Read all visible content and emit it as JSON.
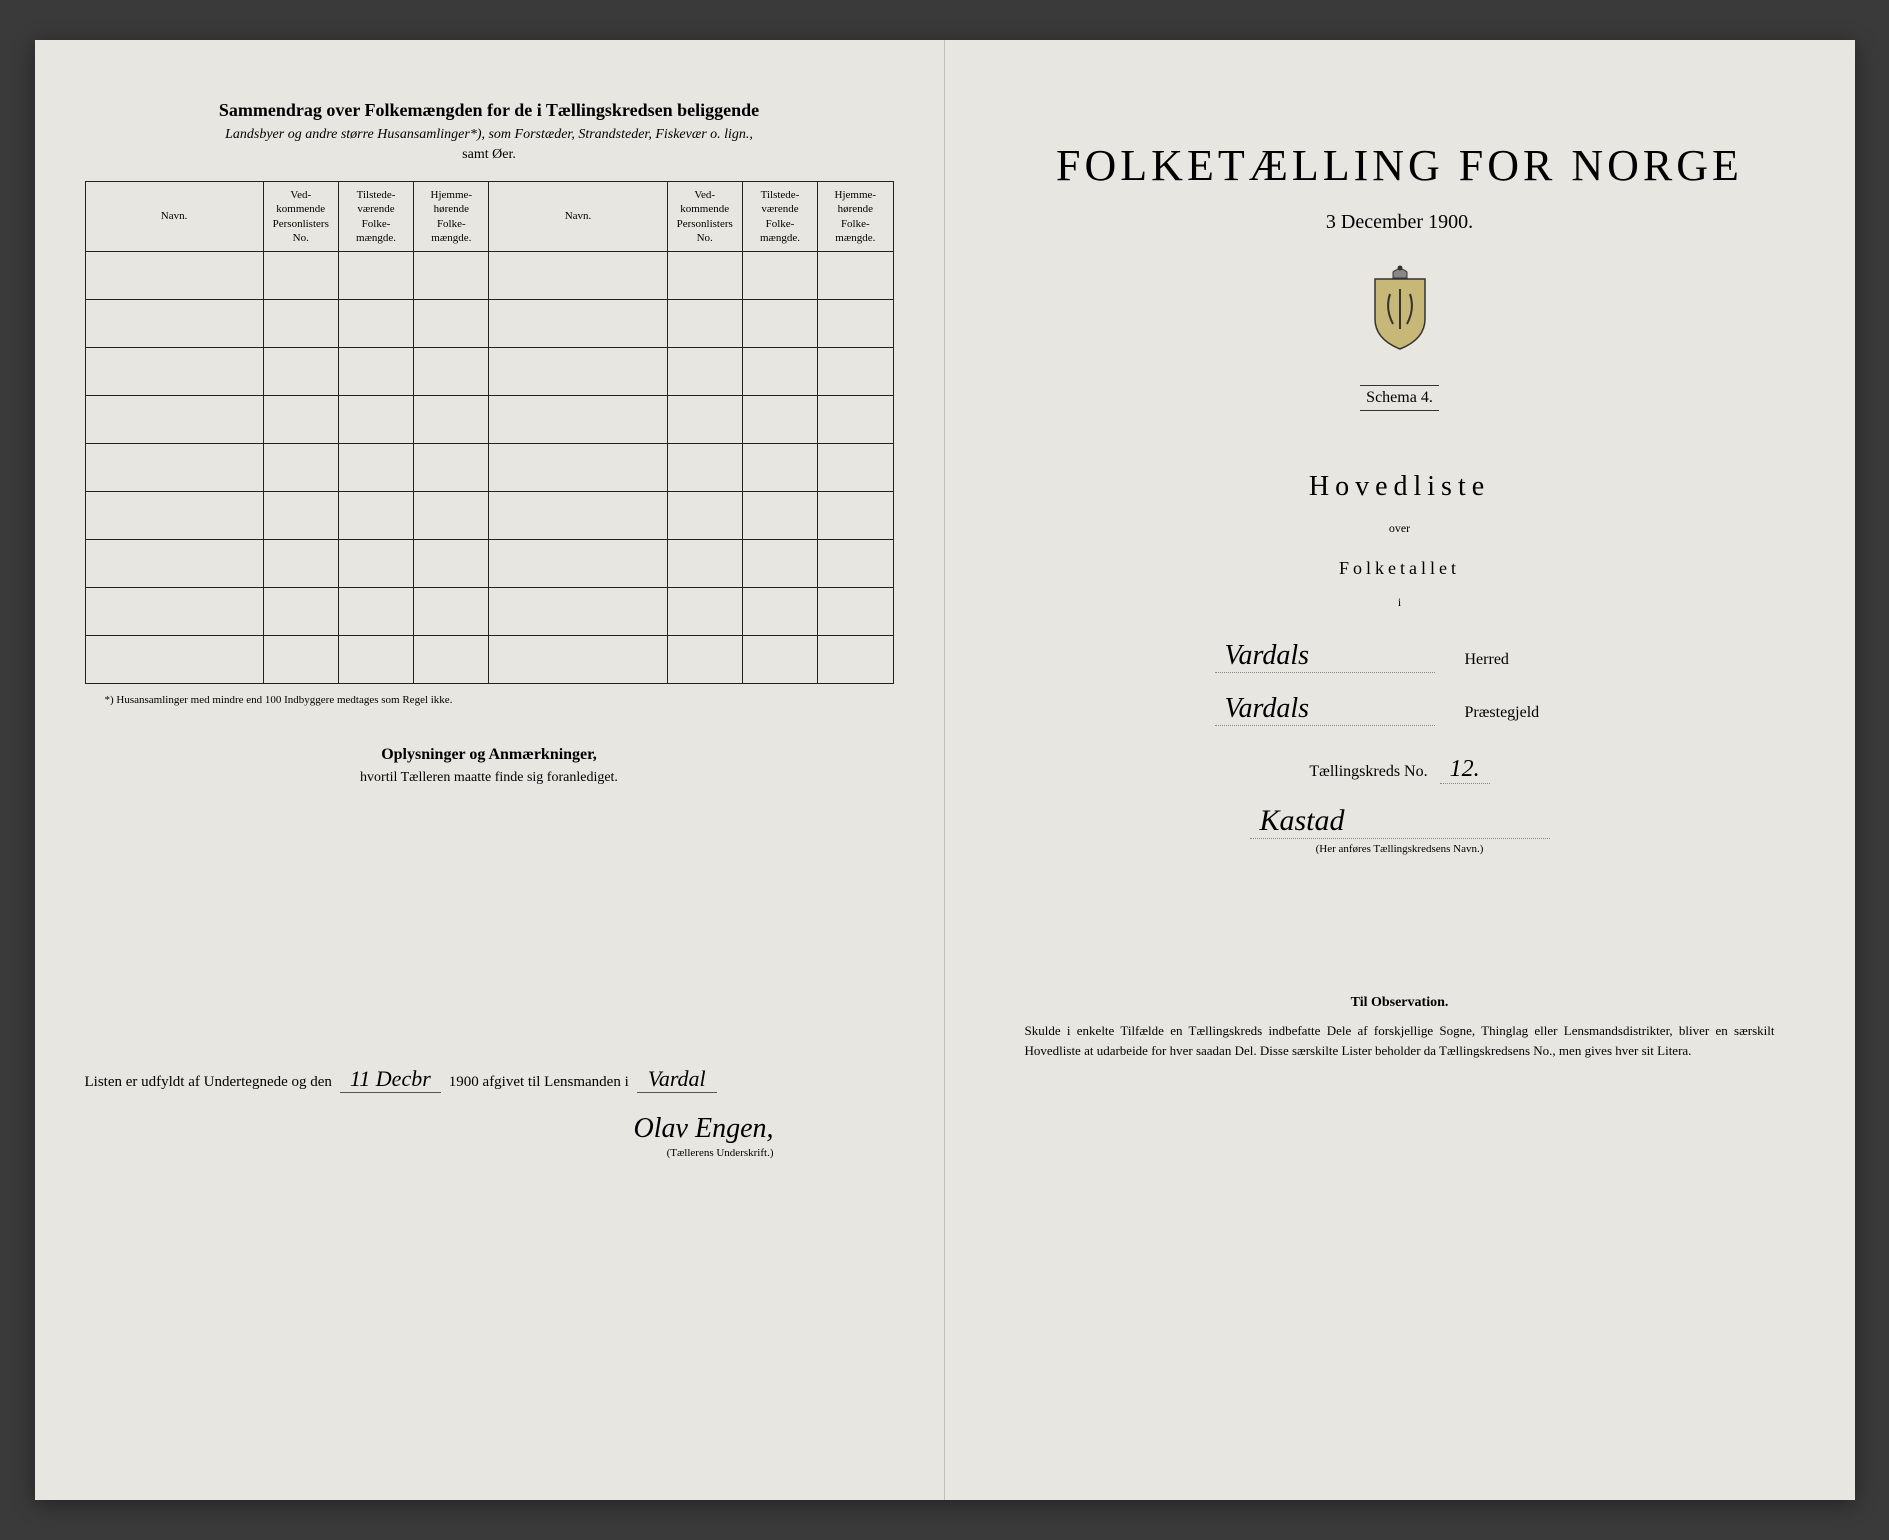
{
  "left": {
    "title": "Sammendrag over Folkemængden for de i Tællingskredsen beliggende",
    "subtitle": "Landsbyer og andre større Husansamlinger*), som Forstæder, Strandsteder, Fiskevær o. lign.,",
    "subtitle2": "samt Øer.",
    "table": {
      "headers": [
        "Navn.",
        "Ved-kommende Personlisters No.",
        "Tilstede-værende Folke-mængde.",
        "Hjemme-hørende Folke-mængde.",
        "Navn.",
        "Ved-kommende Personlisters No.",
        "Tilstede-værende Folke-mængde.",
        "Hjemme-hørende Folke-mængde."
      ],
      "row_count": 9
    },
    "footnote": "*) Husansamlinger med mindre end 100 Indbyggere medtages som Regel ikke.",
    "remarks_title": "Oplysninger og Anmærkninger,",
    "remarks_sub": "hvortil Tælleren maatte finde sig foranlediget.",
    "sig_line_1": "Listen er udfyldt af Undertegnede og den",
    "sig_date": "11 Decbr",
    "sig_year": "1900 afgivet til Lensmanden i",
    "sig_place": "Vardal",
    "sig_name": "Olav Engen,",
    "sig_caption": "(Tællerens Underskrift.)"
  },
  "right": {
    "main_title": "FOLKETÆLLING FOR NORGE",
    "date": "3 December 1900.",
    "schema": "Schema 4.",
    "hoved": "Hovedliste",
    "over": "over",
    "folketallet": "Folketallet",
    "small_i": "i",
    "herred_value": "Vardals",
    "herred_label": "Herred",
    "prest_value": "Vardals",
    "prest_label": "Præstegjeld",
    "kreds_label": "Tællingskreds No.",
    "kreds_no": "12.",
    "kreds_name": "Kastad",
    "kreds_caption": "(Her anføres Tællingskredsens Navn.)",
    "obs_title": "Til Observation.",
    "obs_text": "Skulde i enkelte Tilfælde en Tællingskreds indbefatte Dele af forskjellige Sogne, Thinglag eller Lensmandsdistrikter, bliver en særskilt Hovedliste at udarbeide for hver saadan Del. Disse særskilte Lister beholder da Tællingskredsens No., men gives hver sit Litera."
  },
  "colors": {
    "paper": "#e8e6e0",
    "ink": "#222222",
    "background": "#3a3a3a"
  }
}
